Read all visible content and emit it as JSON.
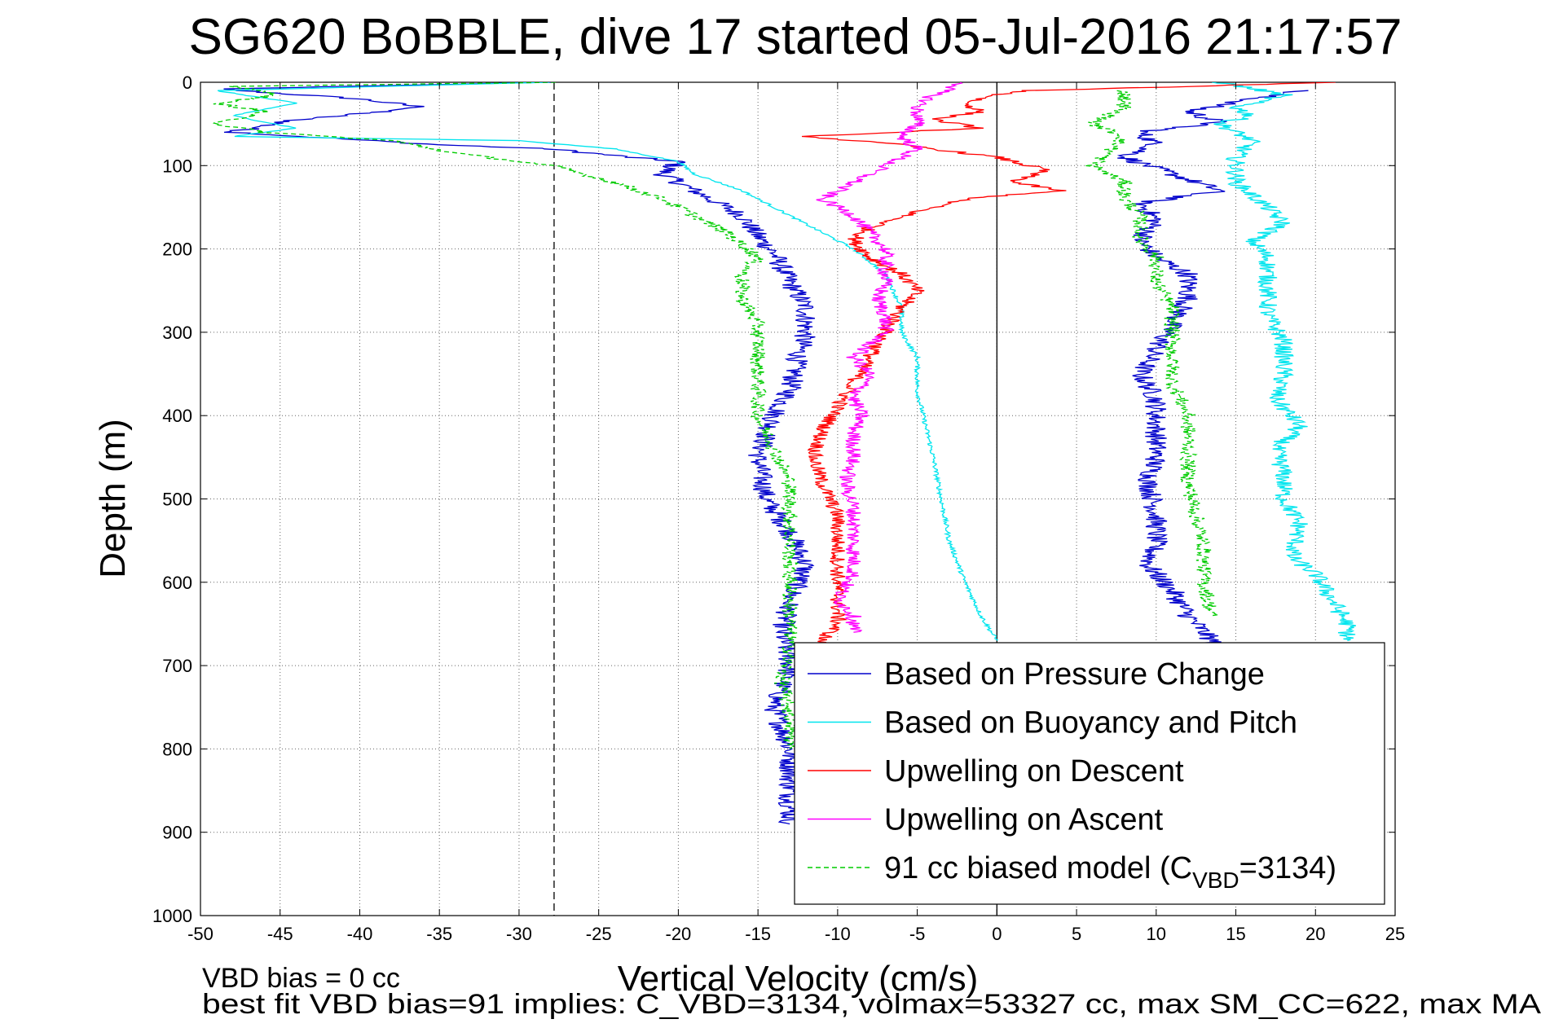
{
  "chart_data": {
    "type": "line",
    "title": "SG620 BoBBLE, dive 17 started 05-Jul-2016 21:17:57",
    "xlabel": "Vertical Velocity (cm/s)",
    "ylabel": "Depth (m)",
    "xlim": [
      -50,
      25
    ],
    "ylim": [
      0,
      1000
    ],
    "y_reversed": true,
    "grid": true,
    "x_ticks": [
      -50,
      -45,
      -40,
      -35,
      -30,
      -25,
      -20,
      -15,
      -10,
      -5,
      0,
      5,
      10,
      15,
      20,
      25
    ],
    "y_ticks": [
      0,
      100,
      200,
      300,
      400,
      500,
      600,
      700,
      800,
      900,
      1000
    ],
    "x_tick_labels": [
      "-50",
      "-45",
      "-40",
      "-35",
      "-30",
      "-25",
      "-20",
      "-15",
      "-10",
      "-5",
      "0",
      "5",
      "10",
      "15",
      "20",
      "25"
    ],
    "y_tick_labels": [
      "0",
      "100",
      "200",
      "300",
      "400",
      "500",
      "600",
      "700",
      "800",
      "900",
      "1000"
    ],
    "reference_lines": [
      {
        "x": 0,
        "style": "solid",
        "color": "#000000"
      },
      {
        "x": -27.8,
        "style": "dashed",
        "color": "#000000"
      }
    ],
    "legend_position": "bottom-right",
    "legend": [
      {
        "label": "Based on Pressure Change",
        "color": "#0000cc",
        "style": "solid"
      },
      {
        "label": "Based on Buoyancy and Pitch",
        "color": "#00e5ee",
        "style": "solid"
      },
      {
        "label": "Upwelling on Descent",
        "color": "#ff0000",
        "style": "solid"
      },
      {
        "label": "Upwelling on Ascent",
        "color": "#ff00ff",
        "style": "solid"
      },
      {
        "label_main": "91 cc biased model (C",
        "label_sub": "VBD",
        "label_tail": "=3134)",
        "color": "#00cc00",
        "style": "dashed"
      }
    ],
    "series": [
      {
        "name": "Based on Pressure Change",
        "color": "#0000cc",
        "dash": "",
        "jitter": 0.7,
        "points": [
          [
            -28,
            0
          ],
          [
            -49,
            8
          ],
          [
            -40,
            20
          ],
          [
            -36,
            30
          ],
          [
            -44,
            45
          ],
          [
            -48,
            60
          ],
          [
            -35,
            75
          ],
          [
            -28,
            80
          ],
          [
            -23,
            90
          ],
          [
            -20,
            95
          ],
          [
            -21,
            110
          ],
          [
            -19,
            130
          ],
          [
            -16,
            160
          ],
          [
            -15,
            185
          ],
          [
            -14,
            205
          ],
          [
            -13,
            240
          ],
          [
            -12,
            270
          ],
          [
            -12,
            300
          ],
          [
            -12.5,
            330
          ],
          [
            -13,
            370
          ],
          [
            -14,
            400
          ],
          [
            -15,
            450
          ],
          [
            -14.5,
            500
          ],
          [
            -13,
            540
          ],
          [
            -12,
            580
          ],
          [
            -13,
            620
          ],
          [
            -13.5,
            660
          ],
          [
            -13,
            700
          ],
          [
            -14,
            750
          ],
          [
            -13,
            800
          ],
          [
            -13,
            850
          ],
          [
            -13,
            890
          ]
        ]
      },
      {
        "name": "Based on Pressure Change (ascent)",
        "color": "#0000cc",
        "dash": "",
        "jitter": 0.7,
        "points": [
          [
            19,
            10
          ],
          [
            16,
            20
          ],
          [
            12,
            35
          ],
          [
            14,
            48
          ],
          [
            11,
            55
          ],
          [
            9,
            60
          ],
          [
            10,
            75
          ],
          [
            8,
            90
          ],
          [
            11,
            110
          ],
          [
            14,
            130
          ],
          [
            9,
            145
          ],
          [
            10,
            165
          ],
          [
            9,
            190
          ],
          [
            10,
            210
          ],
          [
            12,
            230
          ],
          [
            12,
            260
          ],
          [
            11,
            290
          ],
          [
            10,
            320
          ],
          [
            9,
            350
          ],
          [
            10,
            380
          ],
          [
            10,
            410
          ],
          [
            10,
            450
          ],
          [
            9.5,
            480
          ],
          [
            10,
            520
          ],
          [
            10,
            550
          ],
          [
            9.5,
            580
          ],
          [
            11,
            610
          ],
          [
            12,
            640
          ],
          [
            13,
            660
          ],
          [
            14,
            680
          ]
        ]
      },
      {
        "name": "Based on Buoyancy and Pitch",
        "color": "#00e5ee",
        "dash": "",
        "jitter": 0.15,
        "points": [
          [
            -28,
            0
          ],
          [
            -49,
            10
          ],
          [
            -44,
            25
          ],
          [
            -48,
            40
          ],
          [
            -44,
            55
          ],
          [
            -48,
            65
          ],
          [
            -30,
            70
          ],
          [
            -24,
            80
          ],
          [
            -20,
            95
          ],
          [
            -19,
            110
          ],
          [
            -16,
            130
          ],
          [
            -13,
            160
          ],
          [
            -11,
            180
          ],
          [
            -9,
            200
          ],
          [
            -7,
            230
          ],
          [
            -6,
            270
          ],
          [
            -6,
            300
          ],
          [
            -5,
            330
          ],
          [
            -5,
            370
          ],
          [
            -4.5,
            410
          ],
          [
            -4,
            450
          ],
          [
            -3.5,
            500
          ],
          [
            -3,
            550
          ],
          [
            -2,
            600
          ],
          [
            -1,
            640
          ],
          [
            0,
            670
          ]
        ]
      },
      {
        "name": "Based on Buoyancy and Pitch (ascent)",
        "color": "#00e5ee",
        "dash": "",
        "jitter": 0.6,
        "points": [
          [
            14,
            0
          ],
          [
            18,
            15
          ],
          [
            15,
            30
          ],
          [
            16,
            40
          ],
          [
            14,
            50
          ],
          [
            16,
            70
          ],
          [
            15,
            90
          ],
          [
            15,
            120
          ],
          [
            17,
            150
          ],
          [
            18,
            170
          ],
          [
            16,
            190
          ],
          [
            17,
            210
          ],
          [
            17,
            240
          ],
          [
            17,
            280
          ],
          [
            18,
            310
          ],
          [
            18,
            350
          ],
          [
            17.5,
            380
          ],
          [
            19,
            412
          ],
          [
            17.5,
            440
          ],
          [
            18,
            470
          ],
          [
            18,
            500
          ],
          [
            19,
            530
          ],
          [
            18.5,
            570
          ],
          [
            20,
            590
          ],
          [
            21,
            620
          ],
          [
            22,
            650
          ],
          [
            22,
            670
          ]
        ]
      },
      {
        "name": "Upwelling on Descent",
        "color": "#ff0000",
        "dash": "",
        "jitter": 0.5,
        "points": [
          [
            21,
            0
          ],
          [
            12,
            5
          ],
          [
            2,
            10
          ],
          [
            0,
            15
          ],
          [
            -2,
            25
          ],
          [
            -1,
            35
          ],
          [
            -4,
            45
          ],
          [
            -1,
            55
          ],
          [
            -12,
            65
          ],
          [
            -6,
            75
          ],
          [
            0,
            90
          ],
          [
            3,
            105
          ],
          [
            1,
            120
          ],
          [
            4,
            130
          ],
          [
            -2,
            140
          ],
          [
            -5,
            155
          ],
          [
            -8,
            175
          ],
          [
            -9,
            190
          ],
          [
            -8,
            210
          ],
          [
            -6,
            230
          ],
          [
            -5,
            250
          ],
          [
            -6,
            270
          ],
          [
            -7,
            300
          ],
          [
            -8,
            330
          ],
          [
            -9,
            360
          ],
          [
            -10,
            390
          ],
          [
            -11,
            420
          ],
          [
            -11.5,
            450
          ],
          [
            -11,
            480
          ],
          [
            -10,
            520
          ],
          [
            -10,
            560
          ],
          [
            -10,
            600
          ],
          [
            -10,
            630
          ],
          [
            -10,
            650
          ],
          [
            -11.5,
            680
          ]
        ]
      },
      {
        "name": "Upwelling on Ascent",
        "color": "#ff00ff",
        "dash": "",
        "jitter": 0.5,
        "points": [
          [
            -2,
            0
          ],
          [
            -4,
            15
          ],
          [
            -5,
            30
          ],
          [
            -5,
            50
          ],
          [
            -6,
            65
          ],
          [
            -5,
            80
          ],
          [
            -7,
            100
          ],
          [
            -9,
            120
          ],
          [
            -11,
            140
          ],
          [
            -9,
            160
          ],
          [
            -8,
            180
          ],
          [
            -7,
            200
          ],
          [
            -7,
            220
          ],
          [
            -7,
            240
          ],
          [
            -7.5,
            260
          ],
          [
            -7,
            280
          ],
          [
            -7,
            300
          ],
          [
            -9,
            330
          ],
          [
            -8,
            350
          ],
          [
            -9,
            380
          ],
          [
            -8.5,
            400
          ],
          [
            -9,
            420
          ],
          [
            -9,
            450
          ],
          [
            -9.5,
            480
          ],
          [
            -9,
            510
          ],
          [
            -9,
            550
          ],
          [
            -9,
            590
          ],
          [
            -10,
            620
          ],
          [
            -9,
            640
          ],
          [
            -9,
            660
          ]
        ]
      },
      {
        "name": "91 cc biased model",
        "color": "#00cc00",
        "dash": "6,4",
        "jitter": 0.5,
        "points": [
          [
            -28,
            0
          ],
          [
            -48,
            5
          ],
          [
            -45,
            15
          ],
          [
            -49,
            25
          ],
          [
            -46,
            35
          ],
          [
            -49,
            50
          ],
          [
            -46,
            60
          ],
          [
            -38,
            70
          ],
          [
            -34,
            85
          ],
          [
            -28,
            100
          ],
          [
            -24,
            120
          ],
          [
            -21,
            140
          ],
          [
            -19,
            160
          ],
          [
            -17,
            180
          ],
          [
            -16,
            195
          ],
          [
            -15,
            210
          ],
          [
            -16,
            230
          ],
          [
            -16,
            260
          ],
          [
            -15,
            290
          ],
          [
            -15,
            330
          ],
          [
            -15,
            360
          ],
          [
            -15,
            400
          ],
          [
            -14,
            440
          ],
          [
            -13,
            480
          ],
          [
            -13,
            520
          ],
          [
            -13,
            560
          ],
          [
            -13,
            600
          ],
          [
            -13,
            640
          ],
          [
            -13,
            680
          ],
          [
            -13.5,
            720
          ],
          [
            -13,
            760
          ],
          [
            -13,
            800
          ]
        ]
      },
      {
        "name": "91 cc biased model (ascent)",
        "color": "#00cc00",
        "dash": "6,4",
        "jitter": 0.5,
        "points": [
          [
            8,
            10
          ],
          [
            8,
            20
          ],
          [
            8,
            30
          ],
          [
            7,
            40
          ],
          [
            6,
            50
          ],
          [
            8,
            65
          ],
          [
            7,
            85
          ],
          [
            6,
            100
          ],
          [
            8,
            120
          ],
          [
            8,
            140
          ],
          [
            9,
            160
          ],
          [
            9,
            190
          ],
          [
            10,
            210
          ],
          [
            10,
            240
          ],
          [
            11,
            270
          ],
          [
            11,
            300
          ],
          [
            11,
            330
          ],
          [
            11,
            360
          ],
          [
            12,
            400
          ],
          [
            12,
            440
          ],
          [
            12,
            480
          ],
          [
            12.5,
            520
          ],
          [
            13,
            560
          ],
          [
            13,
            600
          ],
          [
            13.5,
            640
          ]
        ]
      }
    ],
    "footer_lines": [
      "VBD bias = 0 cc",
      "best fit VBD bias=91 implies: C_VBD=3134, volmax=53327 cc, max SM_CC=622, max MA"
    ]
  }
}
